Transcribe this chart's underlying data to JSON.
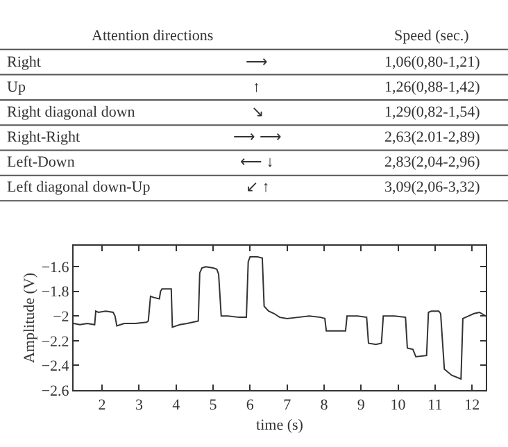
{
  "chart_data": [
    {
      "type": "other",
      "annotations": [
        "Attention directions",
        "Speed (sec.)",
        "Right",
        "⟶",
        "1,06(0,80-1,21)",
        "Up",
        "↑",
        "1,26(0,88-1,42)",
        "Right diagonal down",
        "↘",
        "1,29(0,82-1,54)",
        "Right-Right",
        "⟶ ⟶",
        "2,63(2.01-2,89)",
        "Left-Down",
        "⟵ ↓",
        "2,83(2,04-2,96)",
        "Left diagonal down-Up",
        "↙ ↑",
        "3,09(2,06-3,32)"
      ]
    },
    {
      "type": "line",
      "xlabel": "time (s)",
      "ylabel": "Amplitude (V)",
      "color": "#333333",
      "xlim": [
        1.23,
        12.37
      ],
      "ylim": [
        -2.6,
        -1.43
      ],
      "xticks": [
        2,
        3,
        4,
        5,
        6,
        7,
        8,
        9,
        10,
        11,
        12
      ],
      "yticks": [
        -2.6,
        -2.4,
        -2.2,
        -2,
        -1.8,
        -1.6
      ],
      "x": [
        1.23,
        1.4,
        1.6,
        1.8,
        1.83,
        1.9,
        2.1,
        2.3,
        2.35,
        2.4,
        2.6,
        2.9,
        3.2,
        3.25,
        3.31,
        3.4,
        3.55,
        3.58,
        3.62,
        3.75,
        3.87,
        3.9,
        4.1,
        4.3,
        4.6,
        4.64,
        4.7,
        4.8,
        5.0,
        5.1,
        5.15,
        5.22,
        5.4,
        5.7,
        5.9,
        5.95,
        6.0,
        6.2,
        6.33,
        6.38,
        6.5,
        6.65,
        6.8,
        7.0,
        7.3,
        7.6,
        7.9,
        8.02,
        8.06,
        8.3,
        8.58,
        8.62,
        8.9,
        9.15,
        9.2,
        9.4,
        9.55,
        9.6,
        9.9,
        10.2,
        10.25,
        10.4,
        10.48,
        10.77,
        10.82,
        10.9,
        11.1,
        11.15,
        11.25,
        11.45,
        11.7,
        11.75,
        11.9,
        12.05,
        12.2,
        12.37
      ],
      "values": [
        -2.06,
        -2.07,
        -2.06,
        -2.07,
        -1.96,
        -1.97,
        -1.96,
        -1.97,
        -2.0,
        -2.08,
        -2.06,
        -2.06,
        -2.05,
        -2.04,
        -1.84,
        -1.85,
        -1.86,
        -1.8,
        -1.78,
        -1.78,
        -1.78,
        -2.09,
        -2.07,
        -2.06,
        -2.04,
        -1.65,
        -1.61,
        -1.6,
        -1.61,
        -1.62,
        -1.66,
        -2.0,
        -2.0,
        -2.01,
        -2.01,
        -1.56,
        -1.52,
        -1.52,
        -1.53,
        -1.92,
        -1.96,
        -1.98,
        -2.01,
        -2.02,
        -2.01,
        -2.0,
        -2.01,
        -2.02,
        -2.12,
        -2.12,
        -2.12,
        -2.0,
        -2.0,
        -2.01,
        -2.22,
        -2.23,
        -2.22,
        -2.0,
        -2.0,
        -2.01,
        -2.26,
        -2.27,
        -2.33,
        -2.32,
        -1.97,
        -1.96,
        -1.96,
        -1.98,
        -2.43,
        -2.48,
        -2.51,
        -2.02,
        -2.0,
        -1.98,
        -1.97,
        -2.0
      ]
    }
  ]
}
